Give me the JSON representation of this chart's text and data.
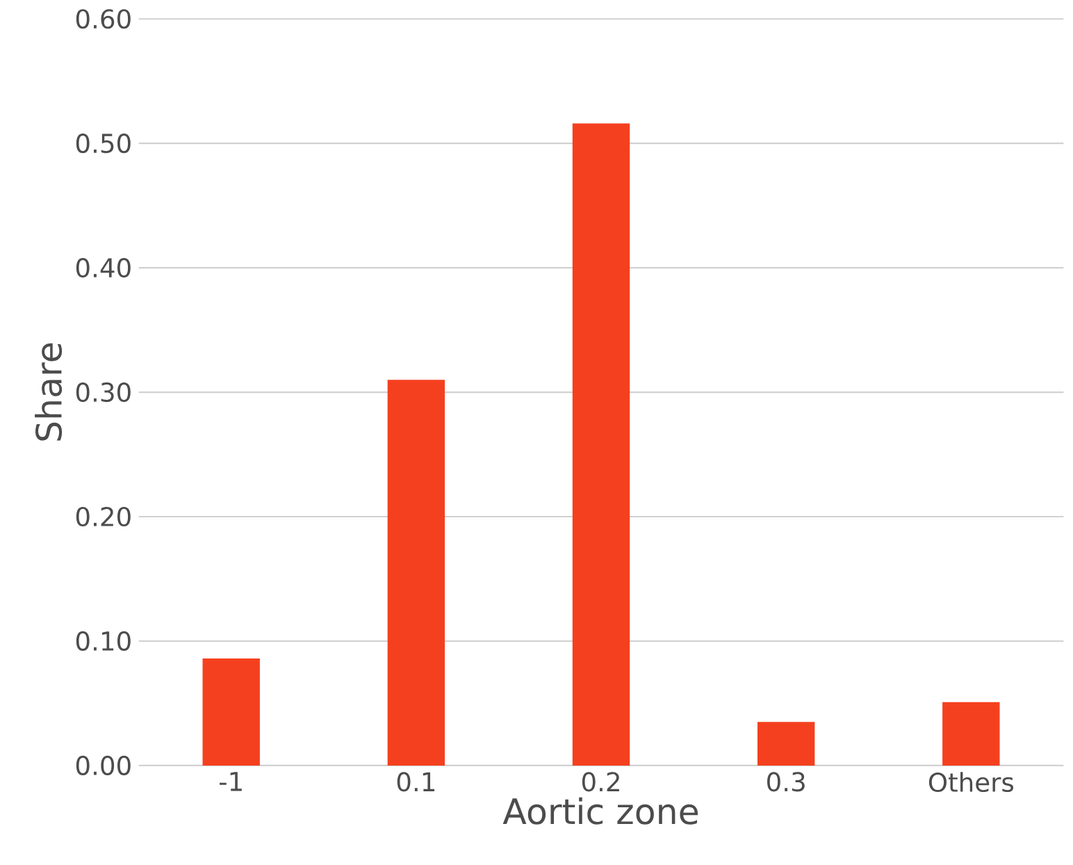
{
  "chart_data": {
    "type": "bar",
    "xlabel": "Aortic zone",
    "ylabel": "Share",
    "categories": [
      "-1",
      "0.1",
      "0.2",
      "0.3",
      "Others"
    ],
    "values": [
      0.086,
      0.31,
      0.516,
      0.035,
      0.051
    ],
    "color": "#f5401f",
    "ylim": [
      0,
      0.6
    ],
    "yticks": [
      {
        "value": 0,
        "label": "0.00"
      },
      {
        "value": 0.1,
        "label": "0.10"
      },
      {
        "value": 0.2,
        "label": "0.20"
      },
      {
        "value": 0.3,
        "label": "0.30"
      },
      {
        "value": 0.4,
        "label": "0.40"
      },
      {
        "value": 0.5,
        "label": "0.50"
      },
      {
        "value": 0.6,
        "label": "0.60"
      }
    ],
    "grid": "y"
  }
}
